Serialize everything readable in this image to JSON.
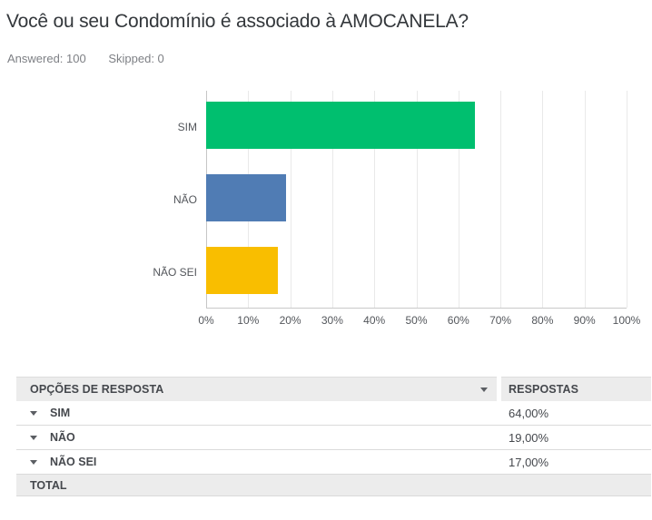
{
  "page": {
    "title": "Você ou seu Condomínio é associado à AMOCANELA?",
    "meta": {
      "answered": "Answered: 100",
      "skipped": "Skipped: 0"
    }
  },
  "chart_data": {
    "type": "bar",
    "orientation": "horizontal",
    "title": "",
    "categories": [
      "SIM",
      "NÃO",
      "NÃO SEI"
    ],
    "values": [
      64,
      19,
      17
    ],
    "value_unit": "percent",
    "bar_colors": [
      "#00BF6F",
      "#507CB4",
      "#F9BE00"
    ],
    "xlim": [
      0,
      100
    ],
    "x_ticks": [
      "0%",
      "10%",
      "20%",
      "30%",
      "40%",
      "50%",
      "60%",
      "70%",
      "80%",
      "90%",
      "100%"
    ],
    "grid": "vertical",
    "legend": false
  },
  "table": {
    "header": {
      "col1": "OPÇÕES DE RESPOSTA",
      "col2": "RESPOSTAS"
    },
    "rows": [
      {
        "label": "SIM",
        "value": "64,00%"
      },
      {
        "label": "NÃO",
        "value": "19,00%"
      },
      {
        "label": "NÃO SEI",
        "value": "17,00%"
      }
    ],
    "footer": {
      "label": "TOTAL",
      "value": ""
    }
  }
}
